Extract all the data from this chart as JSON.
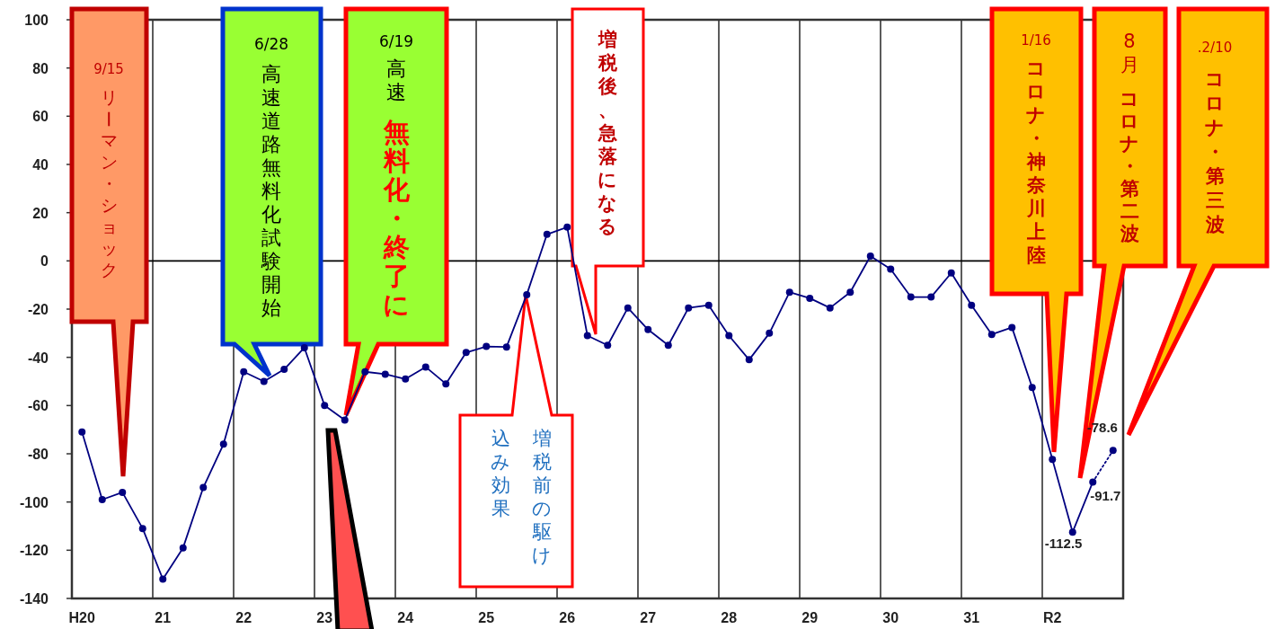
{
  "chart_data": {
    "type": "line",
    "categories": [
      "H20",
      null,
      null,
      null,
      "21",
      null,
      null,
      null,
      "22",
      null,
      null,
      null,
      "23",
      null,
      null,
      null,
      "24",
      null,
      null,
      null,
      "25",
      null,
      null,
      null,
      "26",
      null,
      null,
      null,
      "27",
      null,
      null,
      null,
      "28",
      null,
      null,
      null,
      "29",
      null,
      null,
      null,
      "30",
      null,
      null,
      null,
      "31",
      null,
      null,
      null,
      "R2",
      null,
      null,
      null
    ],
    "series": [
      {
        "color": "#000080",
        "line_style": "solid",
        "marker": "circle",
        "values": [
          -71,
          -99,
          -96,
          -111,
          -132,
          -119,
          -94,
          -76,
          -46,
          -50,
          -45,
          -36,
          -60,
          -66,
          -46,
          -47,
          -49,
          -44,
          -51,
          -38,
          -35.5,
          -35.7,
          -14,
          11,
          14,
          -31,
          -35,
          -19.5,
          -28.5,
          -35,
          -19.5,
          -18.4,
          -31,
          -41,
          -30,
          -13,
          -15.5,
          -19.5,
          -13,
          2,
          -3.4,
          -15,
          -15,
          -5,
          -18.4,
          -30.5,
          -27.6,
          -52.5,
          -82.3,
          -112.5,
          -91.7,
          null
        ],
        "value_labels": [
          null,
          null,
          null,
          null,
          null,
          null,
          null,
          null,
          null,
          null,
          null,
          null,
          null,
          null,
          null,
          null,
          null,
          null,
          null,
          null,
          null,
          null,
          null,
          null,
          null,
          null,
          null,
          null,
          null,
          null,
          null,
          null,
          null,
          null,
          null,
          null,
          null,
          null,
          null,
          null,
          null,
          null,
          null,
          null,
          null,
          null,
          null,
          null,
          null,
          "-112.5",
          "-91.7",
          null
        ]
      },
      {
        "color": "#000080",
        "line_style": "dotted",
        "marker": "circle",
        "values": [
          null,
          null,
          null,
          null,
          null,
          null,
          null,
          null,
          null,
          null,
          null,
          null,
          null,
          null,
          null,
          null,
          null,
          null,
          null,
          null,
          null,
          null,
          null,
          null,
          null,
          null,
          null,
          null,
          null,
          null,
          null,
          null,
          null,
          null,
          null,
          null,
          null,
          null,
          null,
          null,
          null,
          null,
          null,
          null,
          null,
          null,
          null,
          null,
          null,
          null,
          -91.7,
          -78.6
        ],
        "value_labels": [
          null,
          null,
          null,
          null,
          null,
          null,
          null,
          null,
          null,
          null,
          null,
          null,
          null,
          null,
          null,
          null,
          null,
          null,
          null,
          null,
          null,
          null,
          null,
          null,
          null,
          null,
          null,
          null,
          null,
          null,
          null,
          null,
          null,
          null,
          null,
          null,
          null,
          null,
          null,
          null,
          null,
          null,
          null,
          null,
          null,
          null,
          null,
          null,
          null,
          null,
          null,
          "-78.6"
        ]
      }
    ],
    "ylim": [
      -140,
      100
    ],
    "yticks": [
      -140,
      -120,
      -100,
      -80,
      -60,
      -40,
      -20,
      0,
      20,
      40,
      60,
      80,
      100
    ],
    "grid": "x",
    "ref_lines": [
      {
        "axis": "y",
        "value": 0,
        "color": "#000000"
      }
    ],
    "annotations": [
      "9/15",
      "リーマン・ショック",
      "6/28",
      "高速道路無料化試験開始",
      "6/19",
      "高速",
      "無料化・終了に",
      "増税後、急落になる",
      "増税前の駆け",
      "込み効果",
      "1/16",
      "コロナ・神奈川上陸",
      "8月",
      "コロナ・第二波",
      ".2/10",
      "コロナ・第三波"
    ]
  }
}
